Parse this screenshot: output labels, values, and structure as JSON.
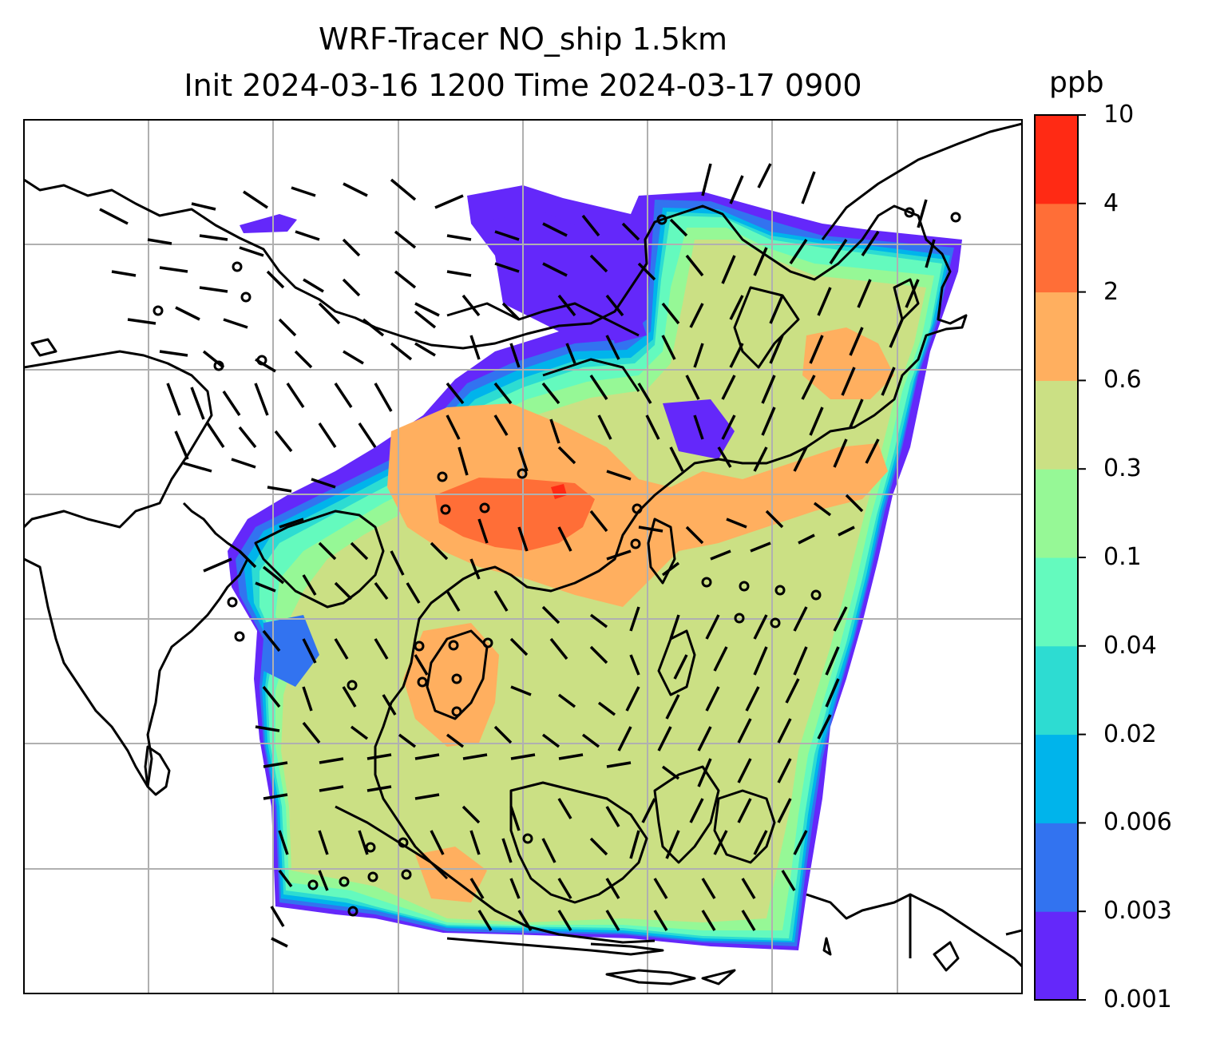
{
  "title": {
    "line1": "WRF-Tracer NO_ship 1.5km",
    "line2": "Init 2024-03-16 1200 Time 2024-03-17 0900"
  },
  "colorbar": {
    "units": "ppb",
    "levels": [
      "0.001",
      "0.003",
      "0.006",
      "0.02",
      "0.04",
      "0.1",
      "0.3",
      "0.6",
      "2",
      "4",
      "10"
    ],
    "colors": [
      "#6428fa",
      "#3273f0",
      "#00b4eb",
      "#2ddcd2",
      "#64fabe",
      "#96f896",
      "#cbe084",
      "#ffaf5f",
      "#ff6e37",
      "#ff2a14"
    ]
  },
  "map": {
    "projection_grid": true,
    "field": "NO_ship tracer concentration",
    "overlay": [
      "wind barbs",
      "coastlines",
      "calm-wind circles"
    ]
  }
}
